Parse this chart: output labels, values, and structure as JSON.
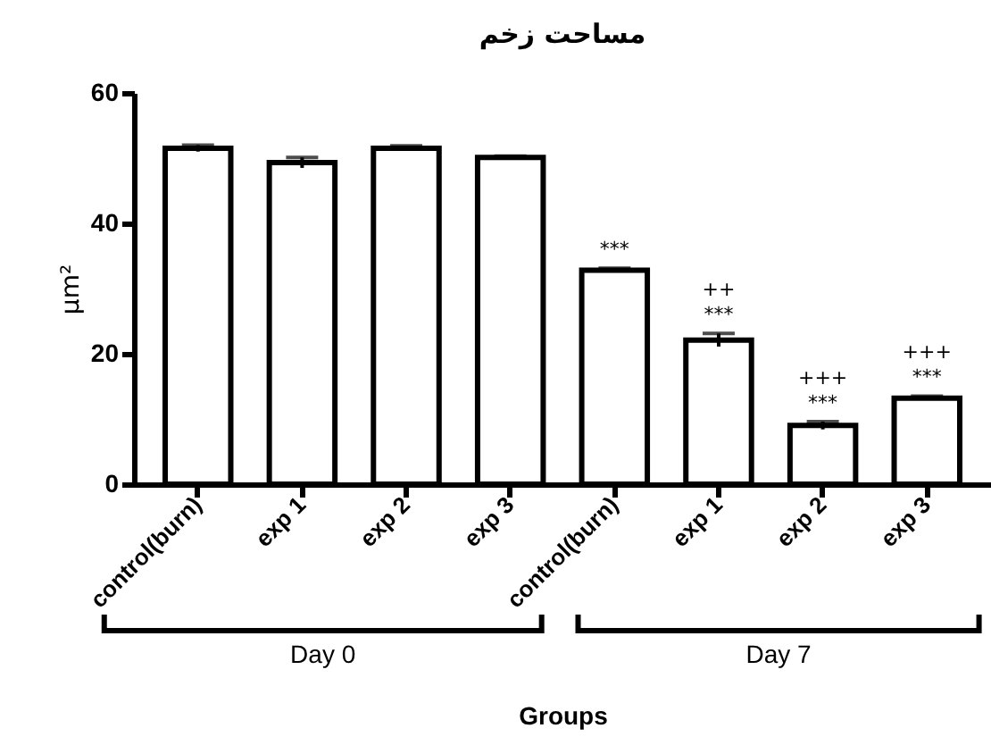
{
  "chart_data": {
    "type": "bar",
    "title": "مساحت زخم",
    "xlabel": "Groups",
    "ylabel": "μm²",
    "categories": [
      "control(burn)",
      "exp 1",
      "exp 2",
      "exp 3",
      "control(burn)",
      "exp 1",
      "exp 2",
      "exp 3"
    ],
    "values": [
      51.5,
      49.3,
      51.5,
      50.1,
      32.8,
      22.1,
      9.0,
      13.2
    ],
    "errors": [
      0.5,
      0.8,
      0.4,
      0.2,
      0.3,
      1.0,
      0.6,
      0.3
    ],
    "value_labels": [
      null,
      null,
      null,
      null,
      "***",
      "++\n***",
      "+++\n***",
      "+++\n***"
    ],
    "color": "#ffffff",
    "ylim": [
      0,
      60
    ],
    "yticks": [
      0,
      20,
      40,
      60
    ],
    "grid": false,
    "annotations": [
      "Day 0",
      "Day 7"
    ]
  }
}
